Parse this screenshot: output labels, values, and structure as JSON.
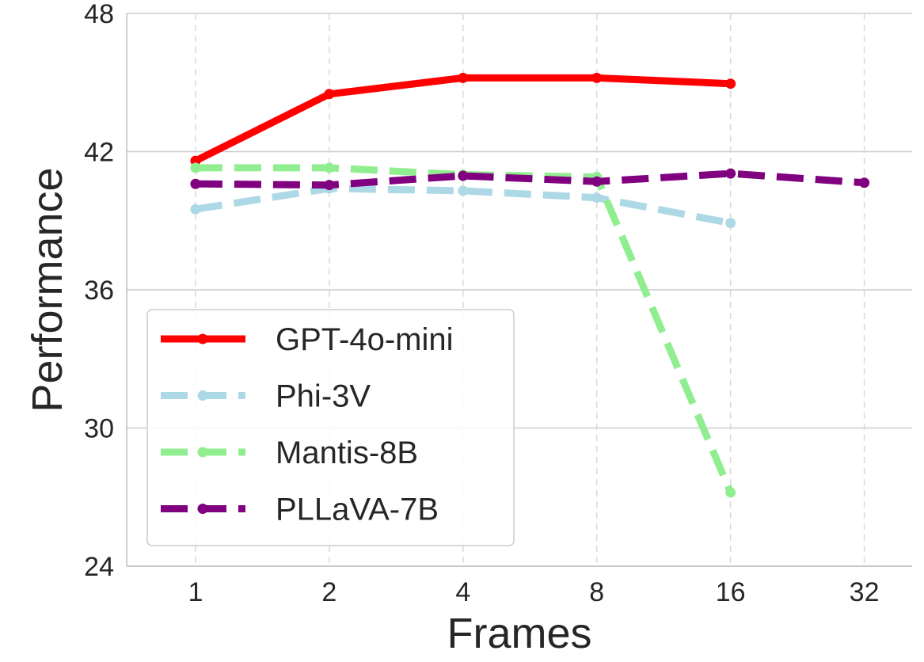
{
  "chart_data": {
    "type": "line",
    "xlabel": "Frames",
    "ylabel": "Performance",
    "x_scale": "log2",
    "x_ticks": [
      1,
      2,
      4,
      8,
      16,
      32
    ],
    "x_tick_labels": [
      "1",
      "2",
      "4",
      "8",
      "16",
      "32"
    ],
    "y_ticks": [
      24,
      30,
      36,
      42,
      48
    ],
    "y_tick_labels": [
      "24",
      "30",
      "36",
      "42",
      "48"
    ],
    "xlim": [
      0.7,
      41
    ],
    "ylim": [
      24,
      48
    ],
    "grid": true,
    "legend_position": "lower-left",
    "series": [
      {
        "name": "GPT-4o-mini",
        "color": "#ff0000",
        "style": "solid",
        "x": [
          1,
          2,
          4,
          8,
          16
        ],
        "y": [
          41.6,
          44.5,
          45.2,
          45.2,
          44.95
        ]
      },
      {
        "name": "Phi-3V",
        "color": "#add8e6",
        "style": "dashed",
        "x": [
          1,
          2,
          4,
          8,
          16
        ],
        "y": [
          39.5,
          40.4,
          40.3,
          40.0,
          38.9
        ]
      },
      {
        "name": "Mantis-8B",
        "color": "#90ee90",
        "style": "dashed",
        "x": [
          1,
          2,
          4,
          8,
          16
        ],
        "y": [
          41.3,
          41.3,
          41.0,
          40.9,
          27.2
        ]
      },
      {
        "name": "PLLaVA-7B",
        "color": "#800080",
        "style": "dashed",
        "x": [
          1,
          2,
          4,
          8,
          16,
          32
        ],
        "y": [
          40.6,
          40.55,
          40.95,
          40.7,
          41.05,
          40.65
        ]
      }
    ]
  }
}
